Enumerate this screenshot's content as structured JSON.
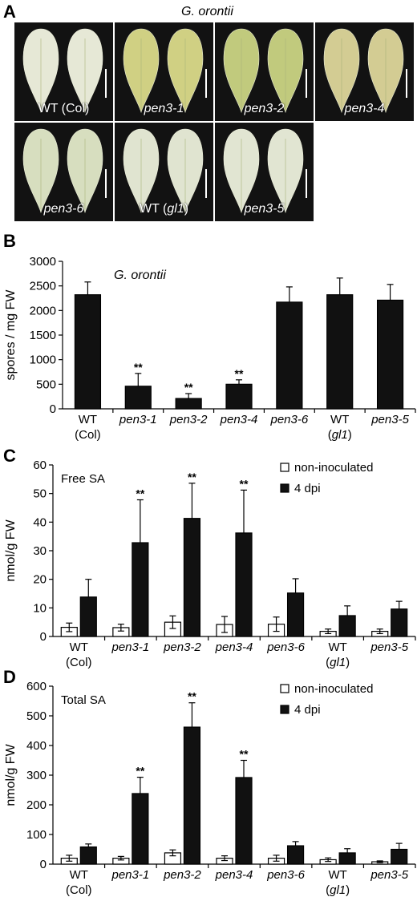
{
  "panelA": {
    "letter": "A",
    "species": "G. orontii",
    "leaves": [
      {
        "label": "WT (Col)",
        "italic": false,
        "tone": "#c9cfa3",
        "dusty": 0.9
      },
      {
        "label": "pen3-1",
        "italic": true,
        "tone": "#c8c86a",
        "dusty": 0.25
      },
      {
        "label": "pen3-2",
        "italic": true,
        "tone": "#b9c46a",
        "dusty": 0.2
      },
      {
        "label": "pen3-4",
        "italic": true,
        "tone": "#c9c07a",
        "dusty": 0.3
      },
      {
        "label": "pen3-6",
        "italic": true,
        "tone": "#c3cf9f",
        "dusty": 0.55
      },
      {
        "label": "WT (gl1)",
        "italic": false,
        "italicPart": "gl1",
        "tone": "#c6cfac",
        "dusty": 0.75
      },
      {
        "label": "pen3-5",
        "italic": true,
        "tone": "#c9d1b0",
        "dusty": 0.75
      }
    ]
  },
  "panelB": {
    "letter": "B",
    "chart_data": {
      "type": "bar",
      "title": "G. orontii",
      "ylabel": "spores / mg FW",
      "ylim": [
        0,
        3000
      ],
      "yticks": [
        0,
        500,
        1000,
        1500,
        2000,
        2500,
        3000
      ],
      "categories": [
        {
          "line1": "WT",
          "line2": "(Col)"
        },
        {
          "line1": "pen3-1",
          "line2": ""
        },
        {
          "line1": "pen3-2",
          "line2": ""
        },
        {
          "line1": "pen3-4",
          "line2": ""
        },
        {
          "line1": "pen3-6",
          "line2": ""
        },
        {
          "line1": "WT",
          "line2": "(gl1)"
        },
        {
          "line1": "pen3-5",
          "line2": ""
        }
      ],
      "series": [
        {
          "values": [
            2320,
            460,
            210,
            500,
            2170,
            2320,
            2210
          ],
          "errors": [
            260,
            260,
            100,
            90,
            310,
            340,
            320
          ],
          "significance": [
            "",
            "**",
            "**",
            "**",
            "",
            "",
            ""
          ],
          "color": "#111111"
        }
      ]
    }
  },
  "panelC": {
    "letter": "C",
    "chart_data": {
      "type": "bar",
      "annotation": "Free SA",
      "ylabel": "nmol/g FW",
      "ylim": [
        0,
        60
      ],
      "yticks": [
        0,
        10,
        20,
        30,
        40,
        50,
        60
      ],
      "categories": [
        {
          "line1": "WT",
          "line2": "(Col)"
        },
        {
          "line1": "pen3-1",
          "line2": ""
        },
        {
          "line1": "pen3-2",
          "line2": ""
        },
        {
          "line1": "pen3-4",
          "line2": ""
        },
        {
          "line1": "pen3-6",
          "line2": ""
        },
        {
          "line1": "WT",
          "line2": "(gl1)"
        },
        {
          "line1": "pen3-5",
          "line2": ""
        }
      ],
      "legend_position": "top-right",
      "series": [
        {
          "name": "non-inoculated",
          "color": "#ffffff",
          "values": [
            3.2,
            3.1,
            5.0,
            4.2,
            4.3,
            1.8,
            1.8
          ],
          "errors": [
            1.5,
            1.2,
            2.2,
            2.8,
            2.5,
            0.8,
            0.8
          ],
          "significance": [
            "",
            "",
            "",
            "",
            "",
            "",
            ""
          ]
        },
        {
          "name": "4 dpi",
          "color": "#111111",
          "values": [
            13.8,
            32.8,
            41.3,
            36.2,
            15.2,
            7.3,
            9.6
          ],
          "errors": [
            6.2,
            15.0,
            12.3,
            15.0,
            5.0,
            3.4,
            2.7
          ],
          "significance": [
            "",
            "**",
            "**",
            "**",
            "",
            "",
            ""
          ]
        }
      ]
    }
  },
  "panelD": {
    "letter": "D",
    "chart_data": {
      "type": "bar",
      "annotation": "Total SA",
      "ylabel": "nmol/g FW",
      "ylim": [
        0,
        600
      ],
      "yticks": [
        0,
        100,
        200,
        300,
        400,
        500,
        600
      ],
      "categories": [
        {
          "line1": "WT",
          "line2": "(Col)"
        },
        {
          "line1": "pen3-1",
          "line2": ""
        },
        {
          "line1": "pen3-2",
          "line2": ""
        },
        {
          "line1": "pen3-4",
          "line2": ""
        },
        {
          "line1": "pen3-6",
          "line2": ""
        },
        {
          "line1": "WT",
          "line2": "(gl1)"
        },
        {
          "line1": "pen3-5",
          "line2": ""
        }
      ],
      "legend_position": "top-right",
      "series": [
        {
          "name": "non-inoculated",
          "color": "#ffffff",
          "values": [
            20,
            20,
            38,
            20,
            20,
            15,
            8
          ],
          "errors": [
            10,
            6,
            10,
            8,
            10,
            6,
            3
          ],
          "significance": [
            "",
            "",
            "",
            "",
            "",
            "",
            ""
          ]
        },
        {
          "name": "4 dpi",
          "color": "#111111",
          "values": [
            58,
            238,
            462,
            292,
            62,
            38,
            50
          ],
          "errors": [
            10,
            55,
            82,
            58,
            14,
            14,
            20
          ],
          "significance": [
            "",
            "**",
            "**",
            "**",
            "",
            "",
            ""
          ]
        }
      ]
    }
  }
}
